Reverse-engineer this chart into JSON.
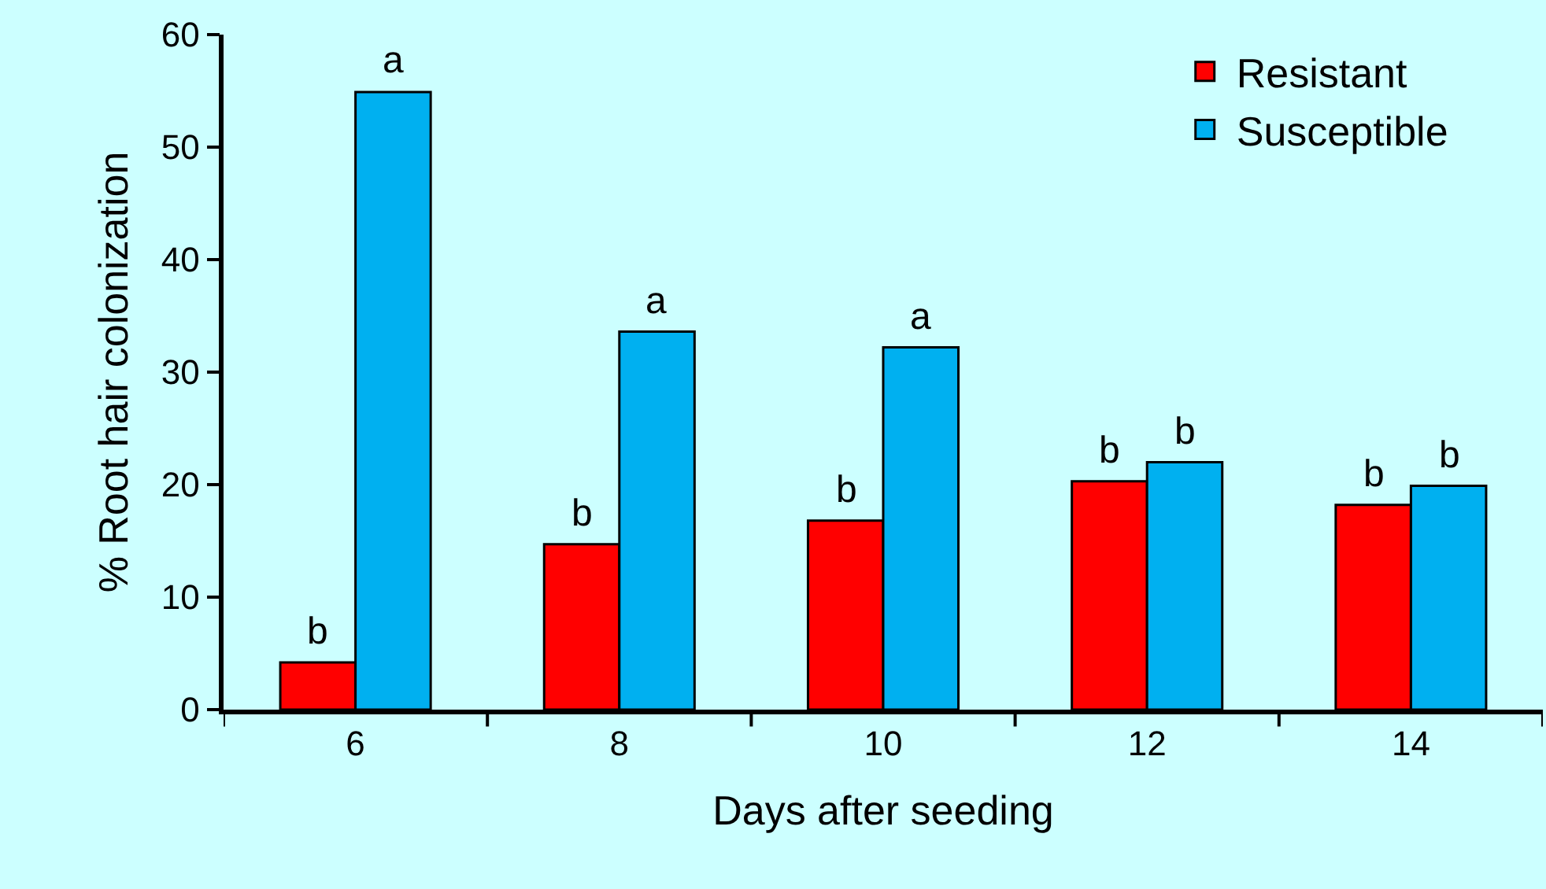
{
  "chart_data": {
    "type": "bar",
    "xlabel": "Days after seeding",
    "ylabel": "% Root hair colonization",
    "categories": [
      "6",
      "8",
      "10",
      "12",
      "14"
    ],
    "series": [
      {
        "name": "Resistant",
        "color": "#ff0000",
        "values": [
          4.2,
          14.7,
          16.8,
          20.3,
          18.2
        ]
      },
      {
        "name": "Susceptible",
        "color": "#00b0f0",
        "values": [
          54.9,
          33.6,
          32.2,
          22.0,
          19.9
        ]
      }
    ],
    "ylim": [
      0,
      60
    ],
    "yticks": [
      0,
      10,
      20,
      30,
      40,
      50,
      60
    ],
    "grid": false,
    "legend": "top right",
    "annotations": [
      {
        "text": "b",
        "x": "6",
        "y": 4.2
      },
      {
        "text": "a",
        "x": "6",
        "y": 54.9
      },
      {
        "text": "b",
        "x": "8",
        "y": 14.7
      },
      {
        "text": "a",
        "x": "8",
        "y": 33.6
      },
      {
        "text": "b",
        "x": "10",
        "y": 16.8
      },
      {
        "text": "a",
        "x": "10",
        "y": 32.2
      },
      {
        "text": "b",
        "x": "12",
        "y": 20.3
      },
      {
        "text": "b",
        "x": "12",
        "y": 22.0
      },
      {
        "text": "b",
        "x": "14",
        "y": 18.2
      },
      {
        "text": "b",
        "x": "14",
        "y": 19.9
      }
    ]
  }
}
